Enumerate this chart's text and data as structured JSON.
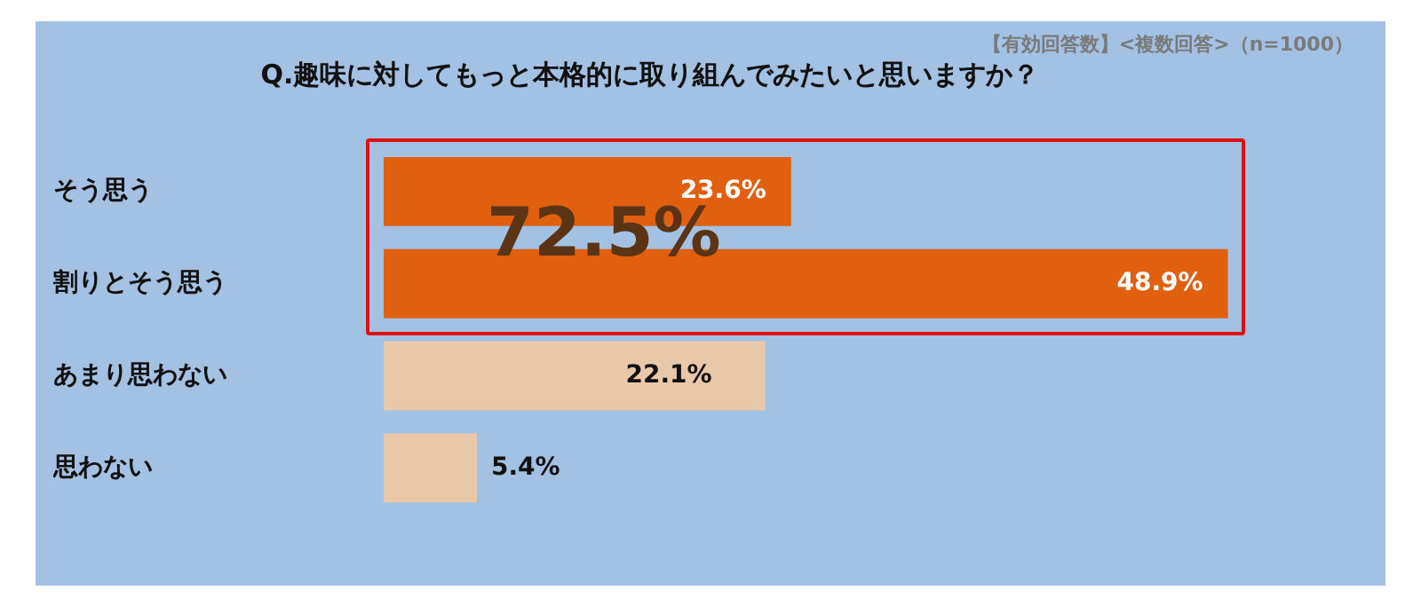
{
  "chart_data": {
    "type": "bar",
    "orientation": "horizontal",
    "title": "Q.趣味に対してもっと本格的に取り組んでみたいと思いますか？",
    "subtitle": "【有効回答数】<複数回答>（n=1000）",
    "categories": [
      "そう思う",
      "割りとそう思う",
      "あまり思わない",
      "思わない"
    ],
    "values": [
      23.6,
      48.9,
      22.1,
      5.4
    ],
    "colors": [
      "#e06010",
      "#e06010",
      "#e8c8a8",
      "#e8c8a8"
    ],
    "value_labels": [
      "23.6%",
      "48.9%",
      "22.1%",
      "5.4%"
    ],
    "annotations": [
      "72.5%"
    ],
    "legend": false,
    "grid": false
  }
}
